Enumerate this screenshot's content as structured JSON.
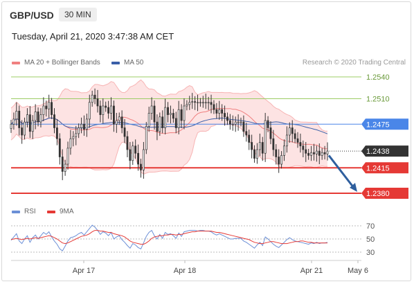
{
  "header": {
    "symbol": "GBP/USD",
    "timeframe": "30 MIN",
    "timestamp": "Tuesday, April 21, 2020 3:47:38 AM CET"
  },
  "legend": {
    "bollinger": "MA 20 + Bollinger Bands",
    "ma50": "MA 50",
    "rsi": "RSI",
    "ma9": "9MA"
  },
  "credit": "Research © 2020 Trading Central",
  "colors": {
    "bollinger": "#f08080",
    "ma50": "#3a5fa8",
    "resistance": "#9ccc65",
    "pivot": "#4a86e8",
    "support": "#e53935",
    "current": "#333333",
    "rsi": "#6b8fd6",
    "ma9": "#e53935",
    "candle_up": "#3a3a3a",
    "candle_down": "#3a3a3a",
    "projection": "#2f5f9e"
  },
  "levels": [
    {
      "value": 1.254,
      "label": "1.2540",
      "type": "resistance"
    },
    {
      "value": 1.251,
      "label": "1.2510",
      "type": "resistance"
    },
    {
      "value": 1.2475,
      "label": "1.2475",
      "type": "pivot"
    },
    {
      "value": 1.2438,
      "label": "1.2438",
      "type": "current"
    },
    {
      "value": 1.2415,
      "label": "1.2415",
      "type": "support"
    },
    {
      "value": 1.238,
      "label": "1.2380",
      "type": "support"
    }
  ],
  "x_labels": [
    "Apr 17",
    "Apr 18",
    "Apr 21",
    "May 6"
  ],
  "rsi_levels": [
    "70",
    "50",
    "30"
  ],
  "chart_data": {
    "type": "candlestick",
    "price_range": [
      1.237,
      1.256
    ],
    "projection": {
      "from": 1.2432,
      "to": 1.238
    },
    "closes": [
      1.2475,
      1.2482,
      1.2493,
      1.247,
      1.246,
      1.2478,
      1.2488,
      1.2465,
      1.248,
      1.2492,
      1.2478,
      1.2488,
      1.25,
      1.2496,
      1.2505,
      1.2488,
      1.247,
      1.2455,
      1.243,
      1.241,
      1.242,
      1.2442,
      1.2455,
      1.2458,
      1.2462,
      1.247,
      1.2475,
      1.2468,
      1.2482,
      1.2505,
      1.2515,
      1.251,
      1.25,
      1.2488,
      1.25,
      1.2498,
      1.249,
      1.25,
      1.2475,
      1.248,
      1.2485,
      1.247,
      1.2458,
      1.244,
      1.2425,
      1.2445,
      1.2435,
      1.242,
      1.2412,
      1.244,
      1.2472,
      1.249,
      1.25,
      1.2478,
      1.2465,
      1.2485,
      1.247,
      1.2498,
      1.2488,
      1.249,
      1.2483,
      1.247,
      1.2495,
      1.248,
      1.25,
      1.2502,
      1.2505,
      1.2506,
      1.2505,
      1.2505,
      1.2505,
      1.2505,
      1.2505,
      1.2505,
      1.2502,
      1.2495,
      1.249,
      1.2495,
      1.249,
      1.2485,
      1.248,
      1.2475,
      1.2475,
      1.2478,
      1.2478,
      1.2478,
      1.2465,
      1.246,
      1.245,
      1.244,
      1.2428,
      1.244,
      1.245,
      1.2435,
      1.248,
      1.247,
      1.2455,
      1.244,
      1.243,
      1.242,
      1.2432,
      1.2445,
      1.246,
      1.247,
      1.2462,
      1.2455,
      1.245,
      1.2445,
      1.244,
      1.2435,
      1.2432,
      1.2436,
      1.2434,
      1.2438,
      1.2432,
      1.2436,
      1.2434,
      1.2438
    ],
    "rsi": [
      48,
      53,
      58,
      47,
      43,
      50,
      55,
      45,
      52,
      56,
      50,
      55,
      60,
      57,
      61,
      53,
      47,
      42,
      35,
      32,
      39,
      47,
      52,
      53,
      55,
      58,
      60,
      56,
      61,
      66,
      71,
      68,
      63,
      57,
      61,
      59,
      55,
      60,
      50,
      53,
      55,
      49,
      45,
      40,
      36,
      43,
      41,
      37,
      35,
      44,
      54,
      60,
      63,
      55,
      50,
      57,
      51,
      60,
      57,
      58,
      55,
      51,
      59,
      54,
      61,
      62,
      63,
      63,
      63,
      62,
      63,
      63,
      62,
      62,
      61,
      58,
      56,
      58,
      56,
      54,
      52,
      50,
      50,
      51,
      51,
      51,
      47,
      45,
      42,
      39,
      36,
      41,
      45,
      40,
      53,
      50,
      46,
      42,
      39,
      37,
      41,
      45,
      49,
      52,
      49,
      47,
      46,
      45,
      44,
      43,
      42,
      44,
      43,
      45,
      43,
      44,
      44,
      45
    ],
    "ma9": [
      49,
      50,
      51,
      50,
      49,
      50,
      51,
      50,
      51,
      52,
      51,
      52,
      53,
      54,
      55,
      54,
      52,
      50,
      47,
      44,
      43,
      44,
      46,
      48,
      50,
      52,
      54,
      55,
      56,
      58,
      61,
      63,
      63,
      62,
      62,
      61,
      60,
      60,
      58,
      57,
      56,
      55,
      53,
      50,
      47,
      45,
      44,
      43,
      42,
      42,
      44,
      47,
      51,
      53,
      54,
      55,
      55,
      56,
      56,
      57,
      57,
      56,
      57,
      57,
      58,
      59,
      60,
      61,
      61,
      62,
      62,
      62,
      62,
      62,
      62,
      61,
      60,
      60,
      59,
      58,
      57,
      56,
      55,
      54,
      53,
      52,
      51,
      50,
      49,
      47,
      45,
      44,
      43,
      43,
      44,
      45,
      46,
      46,
      45,
      44,
      43,
      43,
      43,
      44,
      45,
      46,
      46,
      47,
      47,
      46,
      45,
      45,
      44,
      44,
      44,
      44,
      44,
      44
    ]
  }
}
